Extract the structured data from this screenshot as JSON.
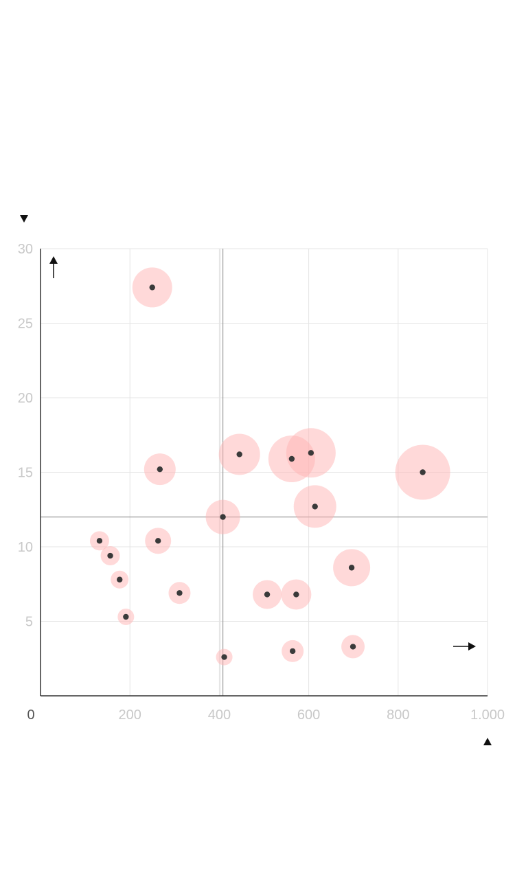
{
  "chart_data": {
    "type": "scatter",
    "x_ticks": [
      "0",
      "200",
      "400",
      "600",
      "800",
      "1.000"
    ],
    "y_ticks": [
      "5",
      "10",
      "15",
      "20",
      "25",
      "30"
    ],
    "xlim": [
      0,
      1000
    ],
    "ylim": [
      0,
      30
    ],
    "grid": true,
    "reference_lines": {
      "x": 408,
      "y": 12
    },
    "colors": {
      "bubble_fill": "#ffb3b3",
      "point": "#3a3a3a",
      "grid": "#e4e4e4",
      "tick_text": "#c8c8c8"
    },
    "points": [
      {
        "x": 250,
        "y": 27.4,
        "size": 29
      },
      {
        "x": 267,
        "y": 15.2,
        "size": 23
      },
      {
        "x": 445,
        "y": 16.2,
        "size": 30
      },
      {
        "x": 562,
        "y": 15.9,
        "size": 34
      },
      {
        "x": 605,
        "y": 16.3,
        "size": 36
      },
      {
        "x": 855,
        "y": 15.0,
        "size": 40
      },
      {
        "x": 614,
        "y": 12.7,
        "size": 31
      },
      {
        "x": 408,
        "y": 12.0,
        "size": 25
      },
      {
        "x": 132,
        "y": 10.4,
        "size": 14
      },
      {
        "x": 263,
        "y": 10.4,
        "size": 19
      },
      {
        "x": 156,
        "y": 9.4,
        "size": 14
      },
      {
        "x": 696,
        "y": 8.6,
        "size": 27
      },
      {
        "x": 177,
        "y": 7.8,
        "size": 13
      },
      {
        "x": 311,
        "y": 6.9,
        "size": 16
      },
      {
        "x": 507,
        "y": 6.8,
        "size": 21
      },
      {
        "x": 572,
        "y": 6.8,
        "size": 22
      },
      {
        "x": 191,
        "y": 5.3,
        "size": 12
      },
      {
        "x": 564,
        "y": 3.0,
        "size": 16
      },
      {
        "x": 699,
        "y": 3.3,
        "size": 17
      },
      {
        "x": 411,
        "y": 2.6,
        "size": 12
      }
    ]
  },
  "icons": {
    "top_marker": "triangle-down-icon",
    "bottom_marker": "triangle-up-icon",
    "y_arrow": "arrow-up-icon",
    "x_arrow": "arrow-right-icon"
  }
}
